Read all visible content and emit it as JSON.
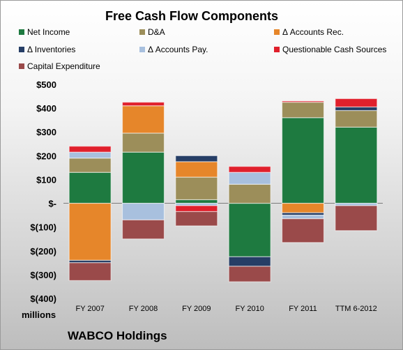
{
  "chart_data": {
    "type": "bar",
    "stacked": true,
    "title": "Free Cash Flow Components",
    "unit_label": "millions",
    "company": "WABCO Holdings",
    "categories": [
      "FY 2007",
      "FY 2008",
      "FY 2009",
      "FY 2010",
      "FY 2011",
      "TTM 6-2012"
    ],
    "ylim": [
      -400,
      500
    ],
    "yticks": [
      -400,
      -300,
      -200,
      -100,
      0,
      100,
      200,
      300,
      400,
      500
    ],
    "ytick_labels": [
      "$(400)",
      "$(300)",
      "$(200)",
      "$(100)",
      "$-",
      "$100",
      "$200",
      "$300",
      "$400",
      "$500"
    ],
    "grid": false,
    "legend_position": "top",
    "series": [
      {
        "name": "Net Income",
        "color": "#1e7a40",
        "values": [
          130,
          215,
          15,
          -225,
          360,
          320
        ]
      },
      {
        "name": "D&A",
        "color": "#9c8e5a",
        "values": [
          60,
          80,
          95,
          80,
          65,
          70
        ]
      },
      {
        "name": "Δ Accounts Rec.",
        "color": "#e6862a",
        "values": [
          -240,
          115,
          65,
          0,
          -40,
          0
        ]
      },
      {
        "name": "Δ Inventories",
        "color": "#263e66",
        "values": [
          -10,
          0,
          25,
          -40,
          -10,
          15
        ]
      },
      {
        "name": "Δ Accounts Pay.",
        "color": "#a8c0de",
        "values": [
          25,
          -70,
          -10,
          50,
          -15,
          -10
        ]
      },
      {
        "name": "Questionable Cash Sources",
        "color": "#e0202c",
        "values": [
          25,
          15,
          -25,
          25,
          5,
          35
        ]
      },
      {
        "name": "Capital Expenditure",
        "color": "#9a4a4a",
        "values": [
          -75,
          -80,
          -60,
          -65,
          -100,
          -105
        ]
      }
    ]
  }
}
